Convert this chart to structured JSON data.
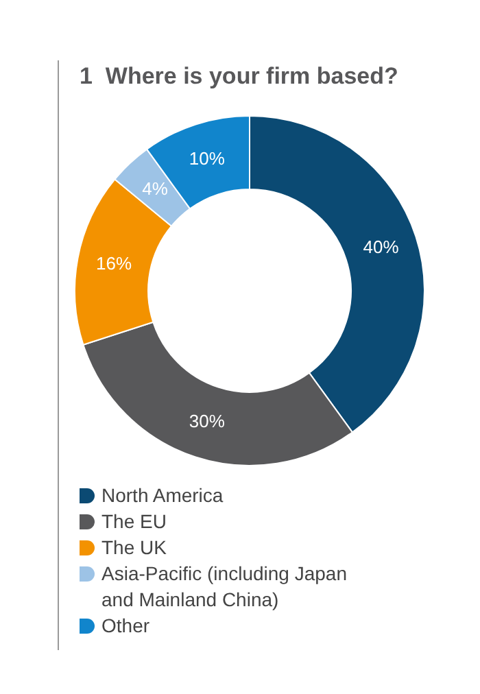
{
  "chart_data": {
    "type": "donut",
    "title": "1  Where is your firm based?",
    "categories": [
      "North America",
      "The EU",
      "The UK",
      "Asia-Pacific (including Japan and Mainland China)",
      "Other"
    ],
    "values": [
      40,
      30,
      16,
      4,
      10
    ],
    "colors": [
      "#0b4a73",
      "#58585a",
      "#f39200",
      "#9dc3e6",
      "#1185cc"
    ],
    "value_labels": [
      "40%",
      "30%",
      "16%",
      "4%",
      "10%"
    ],
    "legend": "bottom"
  }
}
